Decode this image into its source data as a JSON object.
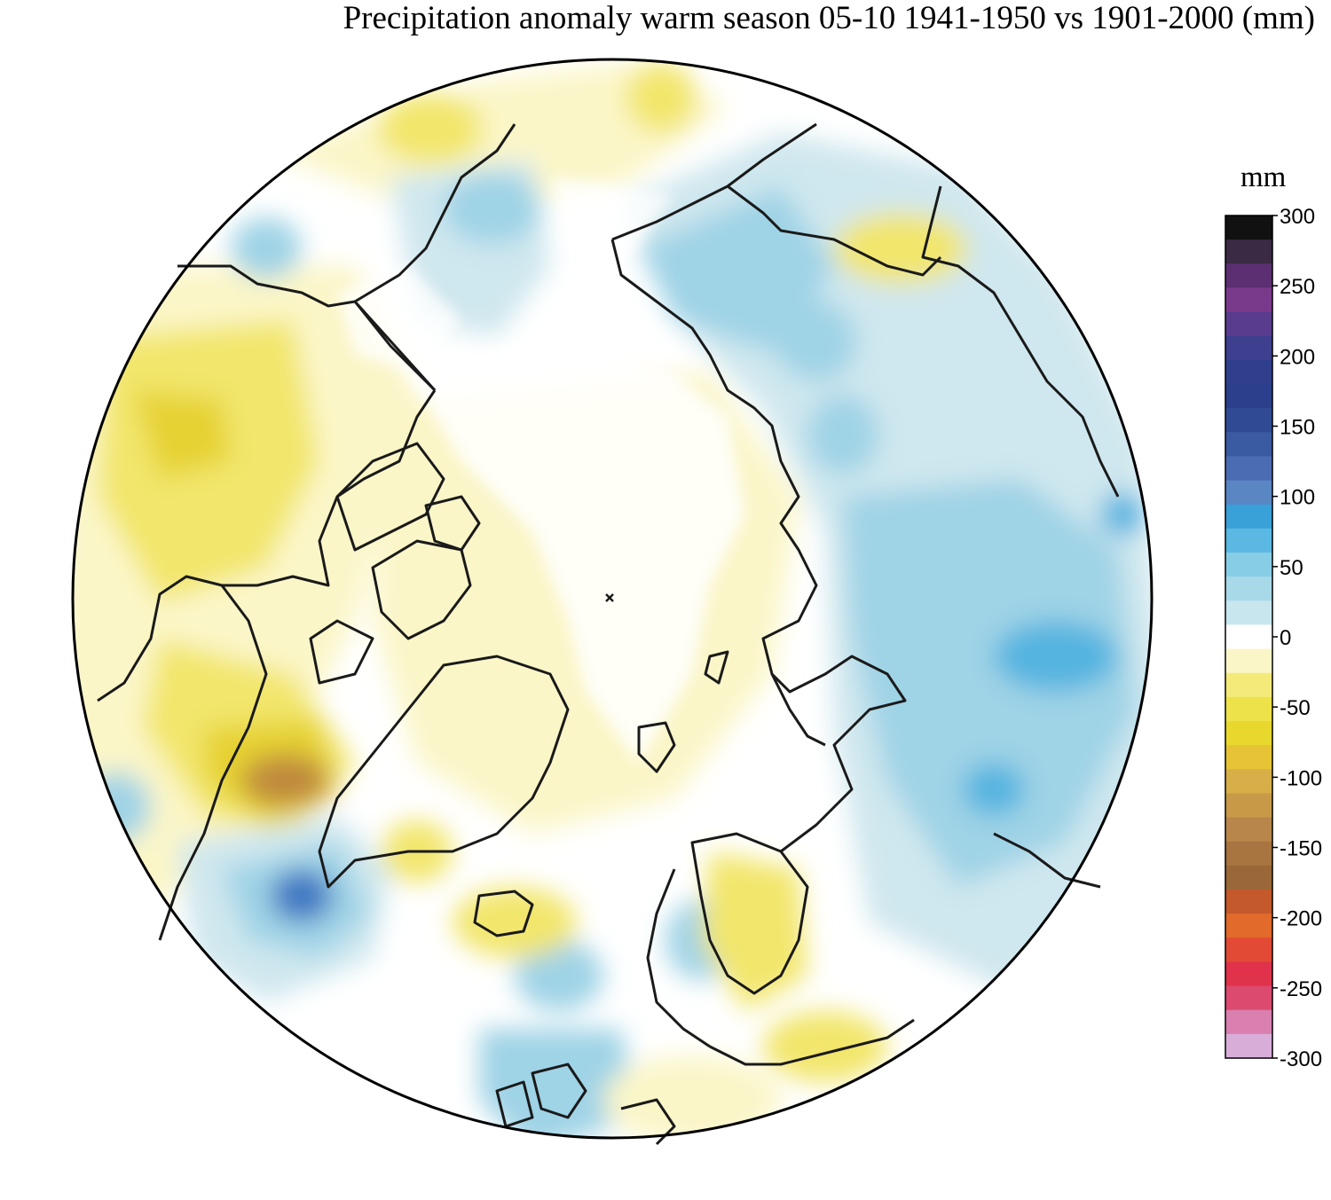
{
  "title": "Precipitation anomaly warm season 05-10 1941-1950 vs 1901-2000 (mm)",
  "colorbar": {
    "unit": "mm",
    "ticks": [
      "300",
      "250",
      "200",
      "150",
      "100",
      "50",
      "0",
      "-50",
      "-100",
      "-150",
      "-200",
      "-250",
      "-300"
    ],
    "range": [
      -300,
      300
    ],
    "colors": [
      "#111111",
      "#3a2a44",
      "#5b2f72",
      "#7a3a8c",
      "#5a3c8e",
      "#3e3f8f",
      "#2f3f8e",
      "#2c3f8c",
      "#304a94",
      "#3a5aa2",
      "#4b6cb2",
      "#5a86c4",
      "#3aa0d8",
      "#5ab8e2",
      "#88cde6",
      "#a8d9e8",
      "#c8e6ee",
      "#ffffff",
      "#fbf6c8",
      "#f4ea7a",
      "#eee24a",
      "#e8d82e",
      "#e6c436",
      "#d8ae48",
      "#c89a48",
      "#b8864a",
      "#a87440",
      "#9a6838",
      "#c45a2c",
      "#e26a2a",
      "#e24a36",
      "#e0324a",
      "#dc4a70",
      "#da80b0",
      "#d8aed8"
    ]
  },
  "map_colors": {
    "neutral": "#ffffff",
    "dry_light": "#fbf6c8",
    "dry_mid": "#f2e66c",
    "dry_strong": "#e6d230",
    "dry_extreme": "#c08a3c",
    "wet_light": "#cfe7ee",
    "wet_mid": "#9fd3e6",
    "wet_strong": "#55b4e0",
    "wet_extreme": "#3f78c2",
    "coastline": "#1a1a1a"
  }
}
